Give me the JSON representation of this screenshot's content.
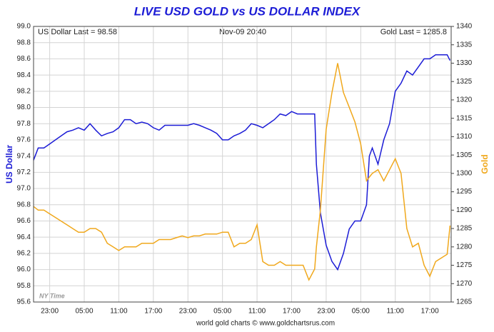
{
  "chart_data": {
    "type": "line",
    "title": "LIVE USD GOLD vs US DOLLAR INDEX",
    "ylabel": "US Dollar",
    "y2label": "Gold",
    "annotations": [
      "US Dollar Last = 98.58",
      "Nov-09  20:40",
      "Gold Last = 1285.8",
      "NY Time",
      "world gold charts © www.goldchartsrus.com"
    ],
    "x": [
      -2.8,
      -2,
      -1,
      0,
      1,
      2,
      3,
      4,
      5,
      6,
      7,
      8,
      9,
      10,
      11,
      12,
      13,
      14,
      15,
      16,
      17,
      18,
      19,
      20,
      21,
      22,
      23,
      24,
      25,
      26,
      27,
      28,
      29,
      30,
      31,
      32,
      33,
      34,
      35,
      36,
      37,
      38,
      39,
      40,
      41,
      42,
      43,
      44,
      45,
      46,
      46.3,
      47,
      48,
      49,
      50,
      51,
      52,
      53,
      54,
      55,
      55.5,
      56,
      57,
      58,
      59,
      60,
      61,
      62,
      63,
      64,
      65,
      66,
      67,
      68,
      69,
      69.5
    ],
    "xlim": [
      -2.8,
      69.7
    ],
    "xticks": [
      {
        "value": 0,
        "label": "23:00"
      },
      {
        "value": 6,
        "label": "05:00"
      },
      {
        "value": 12,
        "label": "11:00"
      },
      {
        "value": 18,
        "label": "17:00"
      },
      {
        "value": 24,
        "label": "23:00"
      },
      {
        "value": 30,
        "label": "05:00"
      },
      {
        "value": 36,
        "label": "11:00"
      },
      {
        "value": 42,
        "label": "17:00"
      },
      {
        "value": 48,
        "label": "23:00"
      },
      {
        "value": 54,
        "label": "05:00"
      },
      {
        "value": 60,
        "label": "11:00"
      },
      {
        "value": 66,
        "label": "17:00"
      }
    ],
    "ylim": [
      95.6,
      99.0
    ],
    "yticks": [
      95.6,
      95.8,
      {
        "value": 96.0,
        "label": "96.0"
      },
      96.2,
      96.4,
      96.6,
      96.8,
      {
        "value": 97.0,
        "label": "97.0"
      },
      97.2,
      97.4,
      97.6,
      97.8,
      {
        "value": 98.0,
        "label": "98.0"
      },
      98.2,
      98.4,
      98.6,
      98.8,
      {
        "value": 99.0,
        "label": "99.0"
      }
    ],
    "y2lim": [
      1265,
      1340
    ],
    "y2ticks": [
      1265,
      1270,
      1275,
      1280,
      1285,
      1290,
      1295,
      1300,
      1305,
      1310,
      1315,
      1320,
      1325,
      1330,
      1335,
      1340
    ],
    "grid": true,
    "series": [
      {
        "name": "US Dollar",
        "color": "#1c1cd6",
        "axis": "y",
        "values": [
          97.35,
          97.5,
          97.5,
          97.55,
          97.6,
          97.65,
          97.7,
          97.72,
          97.75,
          97.72,
          97.8,
          97.72,
          97.65,
          97.68,
          97.7,
          97.75,
          97.85,
          97.85,
          97.8,
          97.82,
          97.8,
          97.75,
          97.72,
          97.78,
          97.78,
          97.78,
          97.78,
          97.78,
          97.8,
          97.78,
          97.75,
          97.72,
          97.68,
          97.6,
          97.6,
          97.65,
          97.68,
          97.72,
          97.8,
          97.78,
          97.75,
          97.8,
          97.85,
          97.92,
          97.9,
          97.95,
          97.92,
          97.92,
          97.92,
          97.92,
          97.3,
          96.7,
          96.3,
          96.1,
          96.0,
          96.2,
          96.5,
          96.6,
          96.6,
          96.8,
          97.4,
          97.5,
          97.3,
          97.6,
          97.8,
          98.2,
          98.3,
          98.45,
          98.4,
          98.5,
          98.6,
          98.6,
          98.65,
          98.65,
          98.65,
          98.58
        ]
      },
      {
        "name": "Gold",
        "color": "#f0a81c",
        "axis": "y2",
        "values": [
          1291,
          1290,
          1290,
          1289,
          1288,
          1287,
          1286,
          1285,
          1284,
          1284,
          1285,
          1285,
          1284,
          1281,
          1280,
          1279,
          1280,
          1280,
          1280,
          1281,
          1281,
          1281,
          1282,
          1282,
          1282,
          1282.5,
          1283,
          1282.5,
          1283,
          1283,
          1283.5,
          1283.5,
          1283.5,
          1284,
          1284,
          1280,
          1281,
          1281,
          1282,
          1286,
          1276,
          1275,
          1275,
          1276,
          1275,
          1275,
          1275,
          1275,
          1271,
          1274,
          1280,
          1290,
          1312,
          1322,
          1330,
          1322,
          1318,
          1314,
          1308,
          1298,
          1299,
          1300,
          1301,
          1298,
          1301,
          1304,
          1300,
          1285,
          1280,
          1281,
          1275,
          1272,
          1276,
          1277,
          1278,
          1285.8
        ]
      }
    ]
  }
}
